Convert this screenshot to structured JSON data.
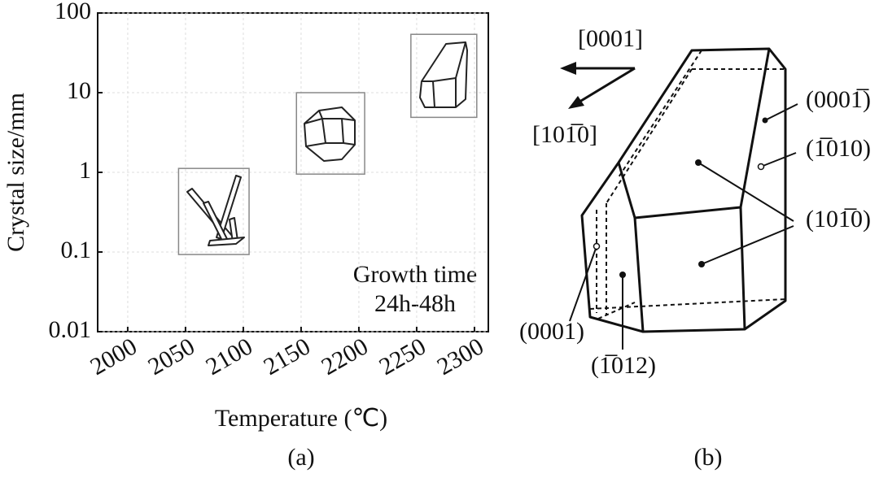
{
  "chart_data": {
    "type": "region",
    "log_scale_y": true,
    "grid": true,
    "x_label": "Temperature (℃)",
    "y_label": "Crystal size/mm",
    "annotation": [
      "Growth time",
      "24h-48h"
    ],
    "caption": "(a)",
    "xlim": [
      1974,
      2312
    ],
    "xticks": [
      2000,
      2050,
      2100,
      2150,
      2200,
      2250,
      2300
    ],
    "ylim": [
      0.01,
      100
    ],
    "yticks": [
      0.01,
      0.1,
      1,
      10,
      100
    ],
    "regions": [
      {
        "xmin": 2044,
        "xmax": 2105,
        "ymin": 0.093,
        "ymax": 1.12
      },
      {
        "xmin": 2146,
        "xmax": 2205,
        "ymin": 0.95,
        "ymax": 10
      },
      {
        "xmin": 2245,
        "xmax": 2302,
        "ymin": 4.9,
        "ymax": 54
      }
    ],
    "color": "#888888"
  },
  "diagram": {
    "caption": "(b)",
    "directions": [
      "[0001]",
      "[101̅0]"
    ],
    "faces": [
      "(0001̅)",
      "(1̅010)",
      "(101̅0)",
      "(0001)",
      "(1̅012)"
    ]
  }
}
